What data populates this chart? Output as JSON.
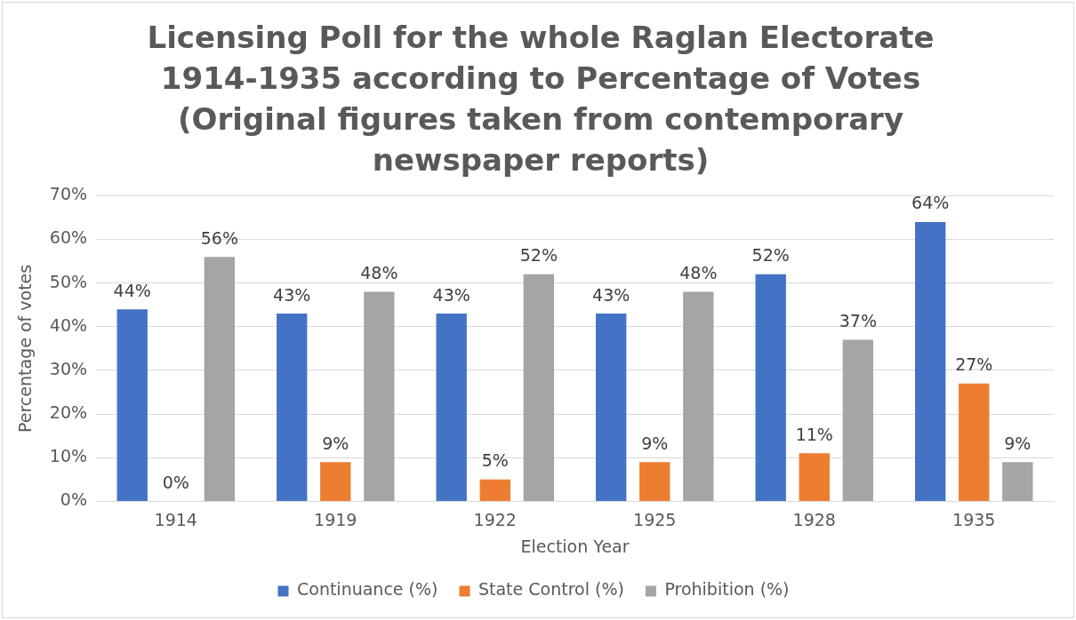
{
  "chart_data": {
    "type": "bar",
    "title": "Licensing Poll for the whole Raglan Electorate 1914-1935 according to Percentage of Votes (Original figures taken from contemporary newspaper reports)",
    "xlabel": "Election Year",
    "ylabel": "Percentage of votes",
    "categories": [
      "1914",
      "1919",
      "1922",
      "1925",
      "1928",
      "1935"
    ],
    "series": [
      {
        "name": "Continuance (%)",
        "color": "#4472c4",
        "values": [
          44,
          43,
          43,
          43,
          52,
          64
        ],
        "value_labels": [
          "44%",
          "43%",
          "43%",
          "43%",
          "52%",
          "64%"
        ]
      },
      {
        "name": "State Control (%)",
        "color": "#ed7d31",
        "values": [
          0,
          9,
          5,
          9,
          11,
          27
        ],
        "value_labels": [
          "0%",
          "9%",
          "5%",
          "9%",
          "11%",
          "27%"
        ]
      },
      {
        "name": "Prohibition (%)",
        "color": "#a5a5a5",
        "values": [
          56,
          48,
          52,
          48,
          37,
          9
        ],
        "value_labels": [
          "56%",
          "48%",
          "52%",
          "48%",
          "37%",
          "9%"
        ]
      }
    ],
    "ylim": [
      0,
      70
    ],
    "yticks": [
      {
        "value": 0,
        "label": "0%"
      },
      {
        "value": 10,
        "label": "10%"
      },
      {
        "value": 20,
        "label": "20%"
      },
      {
        "value": 30,
        "label": "30%"
      },
      {
        "value": 40,
        "label": "40%"
      },
      {
        "value": 50,
        "label": "50%"
      },
      {
        "value": 60,
        "label": "60%"
      },
      {
        "value": 70,
        "label": "70%"
      }
    ],
    "grid": "y",
    "legend": "bottom"
  }
}
